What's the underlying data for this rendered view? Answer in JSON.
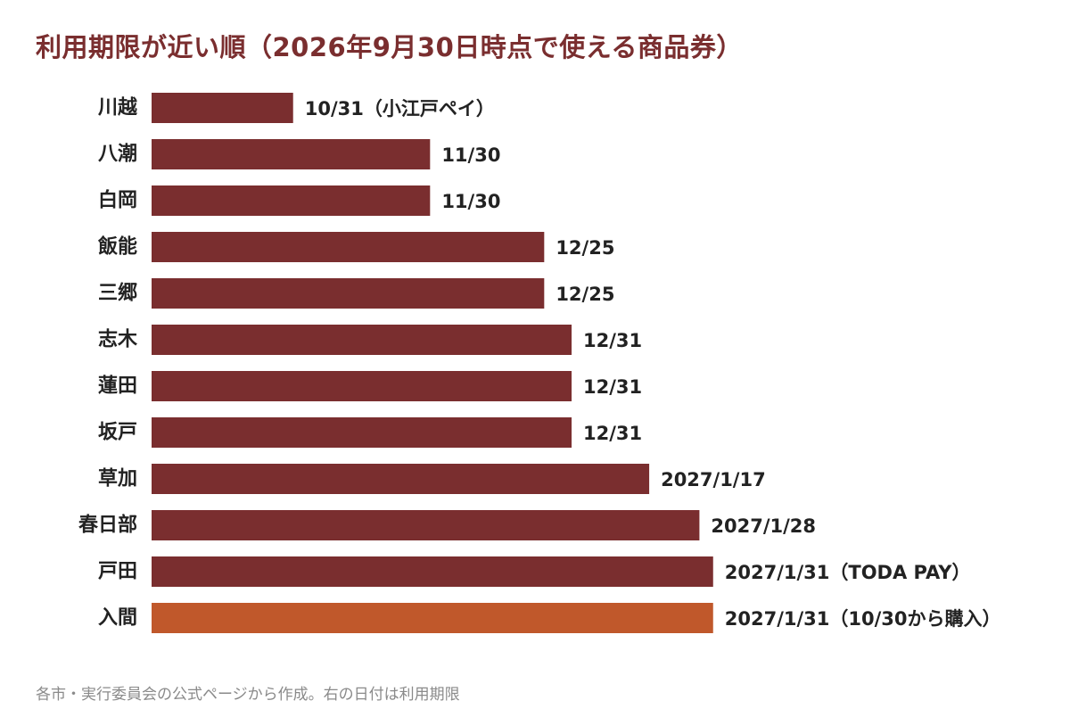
{
  "chart_data": {
    "type": "bar",
    "orientation": "horizontal",
    "title": "利用期限が近い順（2026年9月30日時点で使える商品券）",
    "xlabel": "",
    "ylabel": "",
    "value_unit": "date",
    "xlim": [
      "2026-09-30",
      "2027-01-31"
    ],
    "grid": false,
    "legend": "none",
    "categories": [
      "川越",
      "八潮",
      "白岡",
      "飯能",
      "三郷",
      "志木",
      "蓮田",
      "坂戸",
      "草加",
      "春日部",
      "戸田",
      "入間"
    ],
    "series": [
      {
        "values": [
          "2026-10-31",
          "2026-11-30",
          "2026-11-30",
          "2026-12-25",
          "2026-12-25",
          "2026-12-31",
          "2026-12-31",
          "2026-12-31",
          "2027-01-17",
          "2027-01-28",
          "2027-01-31",
          "2027-01-31"
        ],
        "data_labels": [
          "10/31（小江戸ペイ）",
          "11/30",
          "11/30",
          "12/25",
          "12/25",
          "12/31",
          "12/31",
          "12/31",
          "2027/1/17",
          "2027/1/28",
          "2027/1/31（TODA PAY）",
          "2027/1/31（10/30から購入）"
        ]
      }
    ],
    "colors": {
      "bar": "#7a2e2f",
      "highlight": "#c0582b",
      "title": "#7a2e2f",
      "text": "#222222",
      "footer": "#8a8a8a"
    },
    "highlight_category": "入間"
  },
  "footer": "各市・実行委員会の公式ページから作成。右の日付は利用期限"
}
